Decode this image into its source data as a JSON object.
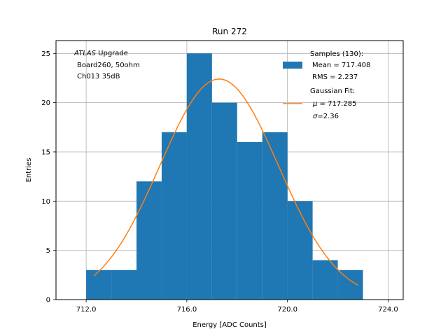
{
  "chart_data": {
    "type": "bar",
    "title": "Run 272",
    "xlabel": "Energy [ADC Counts]",
    "ylabel": "Entries",
    "xlim": [
      710.8,
      724.6
    ],
    "ylim": [
      0,
      26.3
    ],
    "x_ticks": [
      712.0,
      716.0,
      720.0,
      724.0
    ],
    "x_tick_labels": [
      "712.0",
      "716.0",
      "720.0",
      "724.0"
    ],
    "y_ticks": [
      0,
      5,
      10,
      15,
      20,
      25
    ],
    "y_tick_labels": [
      "0",
      "5",
      "10",
      "15",
      "20",
      "25"
    ],
    "grid": true,
    "legend_position": "top-right",
    "annotation": {
      "italic": "ATLAS",
      "line1_rest": " Upgrade",
      "line2": "Board260, 50ohm",
      "line3": "Ch013 35dB"
    },
    "histogram": {
      "name": "Samples (130):",
      "stat_mean": "Mean = 717.408",
      "stat_rms": "RMS = 2.237",
      "color": "#1f77b4",
      "bin_edges": [
        712.0,
        713.0,
        714.0,
        715.0,
        716.0,
        717.0,
        718.0,
        719.0,
        720.0,
        721.0,
        722.0,
        723.0
      ],
      "counts": [
        3,
        3,
        12,
        17,
        25,
        20,
        16,
        17,
        10,
        4,
        3
      ]
    },
    "fit": {
      "name": "Gaussian Fit:",
      "mu_symbol": "μ",
      "mu_value": " = 717.285",
      "sigma_symbol": "σ",
      "sigma_value": "=2.36",
      "color": "#ff7f0e",
      "mu": 717.285,
      "sigma": 2.36,
      "amplitude": 22.4,
      "x_range": [
        712.3,
        722.8
      ]
    }
  }
}
